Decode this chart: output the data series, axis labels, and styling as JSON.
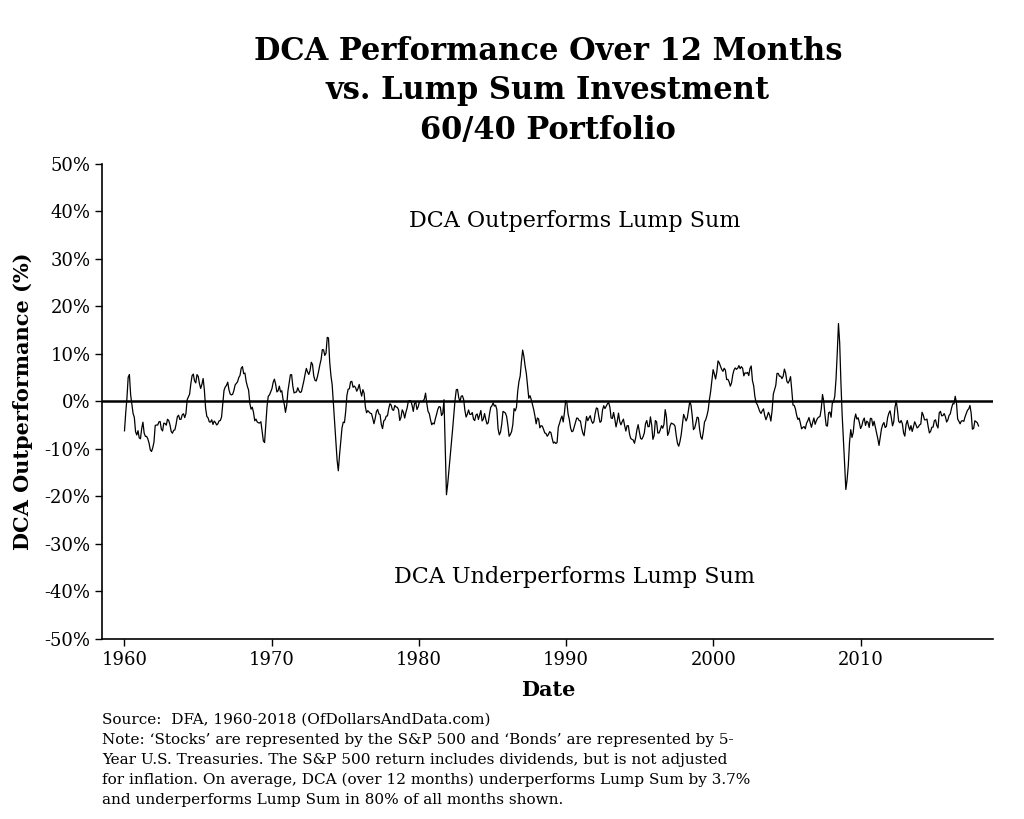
{
  "title": "DCA Performance Over 12 Months\nvs. Lump Sum Investment\n60/40 Portfolio",
  "xlabel": "Date",
  "ylabel": "DCA Outperformance (%)",
  "ylim": [
    -50,
    50
  ],
  "yticks": [
    -50,
    -40,
    -30,
    -20,
    -10,
    0,
    10,
    20,
    30,
    40,
    50
  ],
  "xlim": [
    1958.5,
    2019
  ],
  "xticks": [
    1960,
    1970,
    1980,
    1990,
    2000,
    2010
  ],
  "line_color": "#000000",
  "bg_color": "#ffffff",
  "zero_line_color": "#000000",
  "label_outperform": "DCA Outperforms Lump Sum",
  "label_underperform": "DCA Underperforms Lump Sum",
  "source_text": "Source:  DFA, 1960-2018 (OfDollarsAndData.com)\nNote: ‘Stocks’ are represented by the S&P 500 and ‘Bonds’ are represented by 5-\nYear U.S. Treasuries. The S&P 500 return includes dividends, but is not adjusted\nfor inflation. On average, DCA (over 12 months) underperforms Lump Sum by 3.7%\nand underperforms Lump Sum in 80% of all months shown.",
  "title_fontsize": 22,
  "axis_label_fontsize": 15,
  "tick_fontsize": 13,
  "annot_fontsize": 16,
  "source_fontsize": 11
}
